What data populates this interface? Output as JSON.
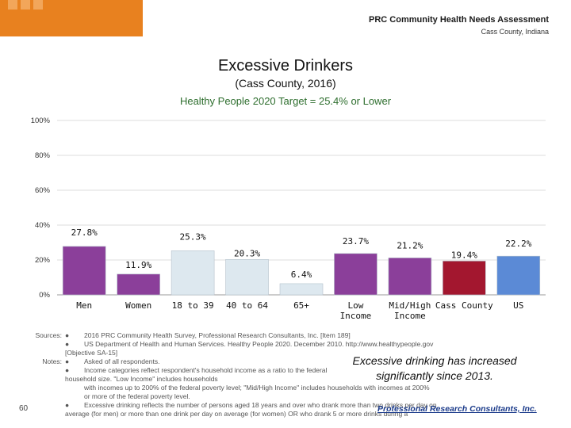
{
  "header": {
    "title": "PRC Community Health Needs Assessment",
    "subtitle": "Cass County, Indiana"
  },
  "chart_data": {
    "type": "bar",
    "title": "Excessive Drinkers",
    "subtitle": "(Cass County, 2016)",
    "target_text": "Healthy People 2020 Target = 25.4% or Lower",
    "y_ticks": [
      "100%",
      "80%",
      "60%",
      "40%",
      "20%",
      "0%"
    ],
    "ylim": [
      0,
      100
    ],
    "categories": [
      "Men",
      "Women",
      "18 to 39",
      "40 to 64",
      "65+",
      "Low Income",
      "Mid/High Income",
      "Cass County",
      "US"
    ],
    "category_lines": [
      [
        "Men"
      ],
      [
        "Women"
      ],
      [
        "18 to 39"
      ],
      [
        "40 to 64"
      ],
      [
        "65+"
      ],
      [
        "Low",
        "Income"
      ],
      [
        "Mid/High",
        "Income"
      ],
      [
        "Cass County"
      ],
      [
        "US"
      ]
    ],
    "values": [
      27.8,
      11.9,
      25.3,
      20.3,
      6.4,
      23.7,
      21.2,
      19.4,
      22.2
    ],
    "value_labels": [
      "27.8%",
      "11.9%",
      "25.3%",
      "20.3%",
      "6.4%",
      "23.7%",
      "21.2%",
      "19.4%",
      "22.2%"
    ],
    "colors": [
      "#8b3f9a",
      "#8b3f9a",
      "#dde8ef",
      "#dde8ef",
      "#dde8ef",
      "#8b3f9a",
      "#8b3f9a",
      "#a3172f",
      "#5b8ad6"
    ]
  },
  "notes": {
    "sources_label": "Sources:",
    "notes_label": "Notes:",
    "bullet": "●",
    "source_1": "2016 PRC Community Health Survey, Professional Research Consultants, Inc. [Item 189]",
    "source_2": "US Department of Health and Human Services. Healthy People 2020. December 2010. http://www.healthypeople.gov",
    "source_2b": "[Objective SA-15]",
    "note_1": "Asked of all respondents.",
    "note_2": "Income categories reflect respondent's household income as a ratio to the federal poverty level (FPL) for their",
    "note_2b": "household size. \"Low Income\" includes households",
    "note_2c": "with incomes up to 200% of the federal poverty level; \"Mid/High Income\" includes households with incomes at 200%",
    "note_2d": "or more of the federal poverty level.",
    "note_3": "Excessive drinking reflects the number of persons aged 18 years and over who drank more than two drinks per day on",
    "note_3b": "average (for men) or more than one drink per day on average (for women) OR who drank 5 or more drinks during a"
  },
  "callout": {
    "line1": "Excessive drinking has increased",
    "line2": "significantly since 2013."
  },
  "page_number": "60",
  "footer_logo": "Professional Research Consultants, Inc."
}
